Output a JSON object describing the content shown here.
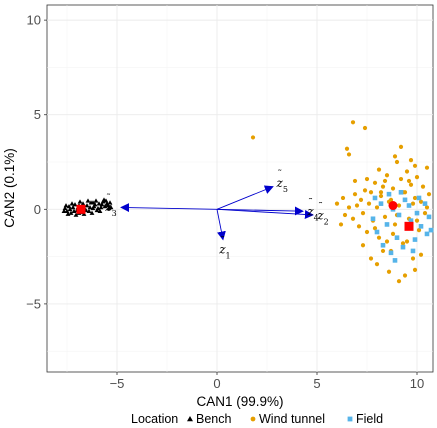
{
  "chart_data": {
    "type": "scatter",
    "xlabel": "CAN1 (99.9%)",
    "ylabel": "CAN2 (0.1%)",
    "xlim": [
      -8.5,
      10.8
    ],
    "ylim": [
      -8.6,
      10.8
    ],
    "xticks": [
      -5,
      0,
      5,
      10
    ],
    "yticks": [
      -5,
      0,
      5,
      10
    ],
    "grid": true,
    "legend_position": "bottom",
    "legend": {
      "title": "Location",
      "items": [
        {
          "label": "Bench",
          "shape": "triangle",
          "color": "#000000"
        },
        {
          "label": "Wind tunnel",
          "shape": "circle",
          "color": "#E69F00"
        },
        {
          "label": "Field",
          "shape": "square",
          "color": "#56B4E9"
        }
      ]
    },
    "series": [
      {
        "name": "Bench",
        "shape": "triangle",
        "color": "#000000",
        "points": [
          [
            -7.6,
            0.05
          ],
          [
            -7.5,
            -0.1
          ],
          [
            -7.4,
            0.15
          ],
          [
            -7.3,
            -0.2
          ],
          [
            -7.2,
            0.1
          ],
          [
            -7.1,
            0.25
          ],
          [
            -7.0,
            -0.05
          ],
          [
            -6.9,
            0.2
          ],
          [
            -6.8,
            -0.15
          ],
          [
            -6.7,
            0.3
          ],
          [
            -6.6,
            0.0
          ],
          [
            -6.5,
            0.2
          ],
          [
            -6.4,
            -0.1
          ],
          [
            -6.3,
            0.35
          ],
          [
            -6.2,
            0.05
          ],
          [
            -6.1,
            0.25
          ],
          [
            -6.0,
            -0.05
          ],
          [
            -5.9,
            0.3
          ],
          [
            -5.8,
            0.1
          ],
          [
            -5.7,
            0.4
          ],
          [
            -5.6,
            0.15
          ],
          [
            -5.5,
            0.3
          ],
          [
            -5.4,
            0.05
          ],
          [
            -7.45,
            -0.25
          ],
          [
            -7.25,
            0.3
          ],
          [
            -7.05,
            -0.3
          ],
          [
            -6.85,
            0.4
          ],
          [
            -6.65,
            -0.25
          ],
          [
            -6.45,
            0.45
          ],
          [
            -6.25,
            -0.2
          ],
          [
            -6.05,
            0.45
          ],
          [
            -5.85,
            -0.1
          ],
          [
            -5.65,
            0.5
          ],
          [
            -5.45,
            0.2
          ],
          [
            -7.35,
            0.0
          ],
          [
            -6.95,
            0.1
          ],
          [
            -6.55,
            -0.05
          ],
          [
            -6.15,
            0.15
          ],
          [
            -5.75,
            0.25
          ],
          [
            -7.55,
            0.2
          ],
          [
            -6.75,
            0.05
          ],
          [
            -5.95,
            0.05
          ],
          [
            -5.35,
            0.35
          ],
          [
            -7.15,
            -0.1
          ],
          [
            -6.35,
            0.1
          ],
          [
            -5.55,
            0.45
          ],
          [
            -7.65,
            -0.1
          ],
          [
            -6.9,
            -0.2
          ],
          [
            -6.2,
            0.35
          ],
          [
            -5.3,
            0.1
          ]
        ]
      },
      {
        "name": "Wind tunnel",
        "shape": "circle",
        "color": "#E69F00",
        "points": [
          [
            1.8,
            3.8
          ],
          [
            6.5,
            3.2
          ],
          [
            6.6,
            2.9
          ],
          [
            6.8,
            4.6
          ],
          [
            7.4,
            4.3
          ],
          [
            10.5,
            2.2
          ],
          [
            6.0,
            0.3
          ],
          [
            6.3,
            0.6
          ],
          [
            6.4,
            -0.3
          ],
          [
            6.6,
            0.1
          ],
          [
            6.8,
            -0.5
          ],
          [
            6.9,
            0.8
          ],
          [
            7.0,
            0.2
          ],
          [
            7.1,
            -0.9
          ],
          [
            7.2,
            0.5
          ],
          [
            7.3,
            -0.2
          ],
          [
            7.4,
            1.0
          ],
          [
            7.5,
            -1.2
          ],
          [
            7.6,
            0.3
          ],
          [
            7.7,
            0.9
          ],
          [
            7.8,
            -0.6
          ],
          [
            7.9,
            1.4
          ],
          [
            8.0,
            0.1
          ],
          [
            8.1,
            -1.5
          ],
          [
            8.2,
            0.7
          ],
          [
            8.3,
            1.2
          ],
          [
            8.4,
            -0.4
          ],
          [
            8.5,
            1.8
          ],
          [
            8.6,
            0.4
          ],
          [
            8.7,
            -2.2
          ],
          [
            8.8,
            1.1
          ],
          [
            8.9,
            -0.8
          ],
          [
            9.0,
            2.5
          ],
          [
            9.1,
            0.2
          ],
          [
            9.2,
            1.6
          ],
          [
            9.3,
            -1.8
          ],
          [
            9.4,
            0.9
          ],
          [
            9.5,
            2.0
          ],
          [
            9.6,
            -0.5
          ],
          [
            9.7,
            1.3
          ],
          [
            9.8,
            -2.6
          ],
          [
            9.9,
            0.6
          ],
          [
            10.0,
            1.7
          ],
          [
            10.1,
            -1.1
          ],
          [
            10.2,
            0.4
          ],
          [
            10.3,
            1.2
          ],
          [
            10.4,
            -0.2
          ],
          [
            10.6,
            0.8
          ],
          [
            8.1,
            2.1
          ],
          [
            8.4,
            1.5
          ],
          [
            8.9,
            2.8
          ],
          [
            9.2,
            3.3
          ],
          [
            9.6,
            1.5
          ],
          [
            9.9,
            2.3
          ],
          [
            8.0,
            -2.9
          ],
          [
            8.6,
            -3.3
          ],
          [
            9.1,
            -3.8
          ],
          [
            9.4,
            -3.5
          ],
          [
            9.9,
            -3.2
          ],
          [
            10.2,
            -2.4
          ],
          [
            7.3,
            -1.9
          ],
          [
            7.7,
            -2.6
          ],
          [
            8.3,
            -2.2
          ],
          [
            8.8,
            -1.3
          ],
          [
            9.5,
            -1.7
          ],
          [
            10.0,
            -0.6
          ],
          [
            7.5,
            1.6
          ],
          [
            8.2,
            0.9
          ],
          [
            8.7,
            0.5
          ],
          [
            9.3,
            0.9
          ],
          [
            9.8,
            0.3
          ],
          [
            10.5,
            0.1
          ],
          [
            6.2,
            -0.8
          ],
          [
            6.9,
            1.5
          ],
          [
            7.9,
            -1.0
          ],
          [
            8.5,
            -1.7
          ],
          [
            9.0,
            -0.3
          ],
          [
            9.7,
            2.6
          ]
        ]
      },
      {
        "name": "Field",
        "shape": "square",
        "color": "#56B4E9",
        "points": [
          [
            7.8,
            -0.5
          ],
          [
            8.0,
            -1.2
          ],
          [
            8.2,
            0.3
          ],
          [
            8.3,
            -1.9
          ],
          [
            8.5,
            -0.8
          ],
          [
            8.7,
            -2.3
          ],
          [
            8.8,
            0.0
          ],
          [
            9.0,
            -1.5
          ],
          [
            9.1,
            -0.3
          ],
          [
            9.3,
            -2.0
          ],
          [
            9.4,
            0.5
          ],
          [
            9.5,
            -1.0
          ],
          [
            9.6,
            0.2
          ],
          [
            9.7,
            -0.6
          ],
          [
            9.9,
            -1.6
          ],
          [
            10.0,
            -0.2
          ],
          [
            10.1,
            0.6
          ],
          [
            10.2,
            -0.9
          ],
          [
            10.4,
            0.3
          ],
          [
            10.5,
            -1.3
          ],
          [
            10.7,
            -1.1
          ],
          [
            7.9,
            0.6
          ],
          [
            8.6,
            0.8
          ],
          [
            9.2,
            0.9
          ],
          [
            8.9,
            -2.7
          ],
          [
            9.8,
            -2.2
          ],
          [
            10.6,
            -0.4
          ]
        ]
      },
      {
        "name": "Bench centroid",
        "shape": "square",
        "color": "#FF0000",
        "size": "large",
        "points": [
          [
            -6.8,
            0.0
          ]
        ]
      },
      {
        "name": "Wind tunnel centroid",
        "shape": "circle",
        "color": "#FF0000",
        "size": "large",
        "points": [
          [
            8.8,
            0.2
          ]
        ]
      },
      {
        "name": "Field centroid",
        "shape": "square",
        "color": "#FF0000",
        "size": "large",
        "points": [
          [
            9.6,
            -0.9
          ]
        ]
      }
    ],
    "vectors": [
      {
        "label_main": "z",
        "label_sub": "1",
        "x": 0.3,
        "y": -1.6
      },
      {
        "label_main": "z",
        "label_sub": "2",
        "x": 4.8,
        "y": -0.3
      },
      {
        "label_main": "z",
        "label_sub": "3",
        "x": -4.8,
        "y": 0.1
      },
      {
        "label_main": "z",
        "label_sub": "4",
        "x": 4.3,
        "y": -0.1
      },
      {
        "label_main": "z",
        "label_sub": "5",
        "x": 2.8,
        "y": 1.2
      }
    ],
    "vector_color": "#0000CC"
  }
}
